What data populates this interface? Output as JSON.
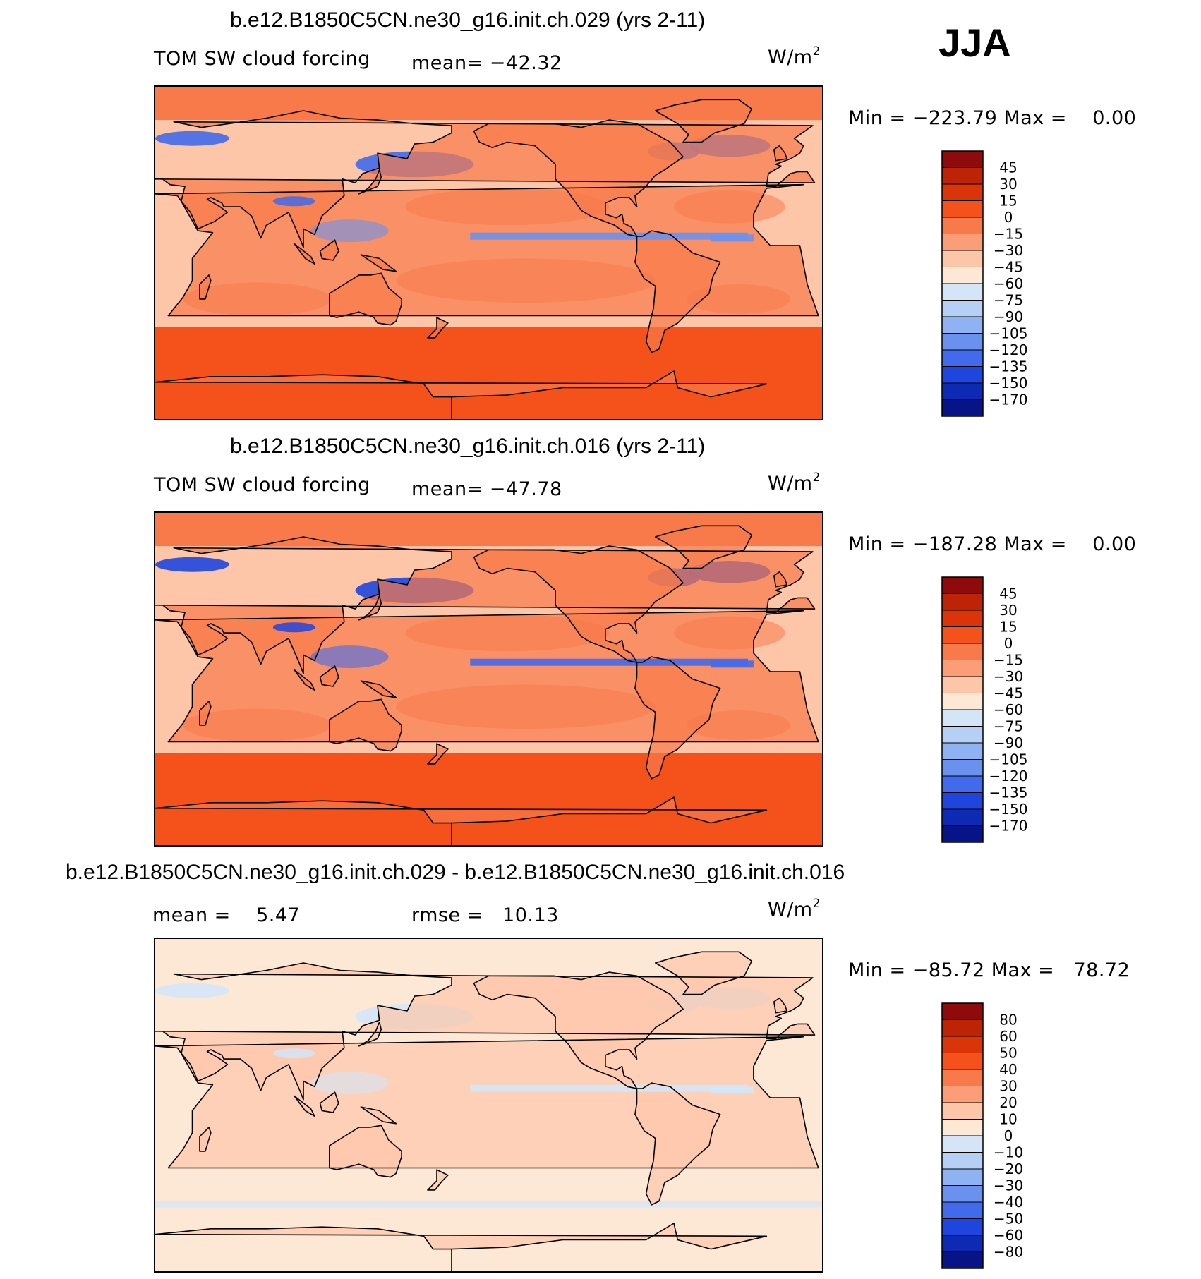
{
  "season": "JJA",
  "panels": [
    {
      "title": "b.e12.B1850C5CN.ne30_g16.init.ch.029 (yrs 2-11)",
      "left_label": "TOM SW cloud forcing",
      "center_label": "mean= −42.32",
      "units": "W/m",
      "units_sup": "2",
      "minmax": "Min = −223.79 Max =    0.00",
      "colorbar": {
        "labels": [
          "45",
          "30",
          "15",
          "0",
          "−15",
          "−30",
          "−45",
          "−60",
          "−75",
          "−90",
          "−105",
          "−120",
          "−135",
          "−150",
          "−170"
        ],
        "colors": [
          "#8f0a0a",
          "#bd2406",
          "#db3408",
          "#f4511b",
          "#f87a4a",
          "#fb9e78",
          "#fdc6a9",
          "#fde8d6",
          "#d4e5f8",
          "#b5cff5",
          "#8fb2f2",
          "#6b91ef",
          "#416aec",
          "#1f45df",
          "#0c2ab4",
          "#061487"
        ]
      },
      "map": {
        "bg": "#fdc6a9",
        "north": "#f87a4a",
        "south": "#f4511b",
        "tropic": "#6b91ef",
        "storm": "#416aec",
        "land": "#f87a4a"
      }
    },
    {
      "title": "b.e12.B1850C5CN.ne30_g16.init.ch.016 (yrs 2-11)",
      "left_label": "TOM SW cloud forcing",
      "center_label": "mean= −47.78",
      "units": "W/m",
      "units_sup": "2",
      "minmax": "Min = −187.28 Max =    0.00",
      "colorbar": {
        "labels": [
          "45",
          "30",
          "15",
          "0",
          "−15",
          "−30",
          "−45",
          "−60",
          "−75",
          "−90",
          "−105",
          "−120",
          "−135",
          "−150",
          "−170"
        ],
        "colors": [
          "#8f0a0a",
          "#bd2406",
          "#db3408",
          "#f4511b",
          "#f87a4a",
          "#fb9e78",
          "#fdc6a9",
          "#fde8d6",
          "#d4e5f8",
          "#b5cff5",
          "#8fb2f2",
          "#6b91ef",
          "#416aec",
          "#1f45df",
          "#0c2ab4",
          "#061487"
        ]
      },
      "map": {
        "bg": "#fdc6a9",
        "north": "#f87a4a",
        "south": "#f4511b",
        "tropic": "#416aec",
        "storm": "#1f45df",
        "land": "#f87a4a"
      }
    },
    {
      "title": "b.e12.B1850C5CN.ne30_g16.init.ch.029 - b.e12.B1850C5CN.ne30_g16.init.ch.016",
      "left_label": "mean =    5.47",
      "center_label": "rmse =   10.13",
      "units": "W/m",
      "units_sup": "2",
      "minmax": "Min = −85.72 Max =   78.72",
      "colorbar": {
        "labels": [
          "80",
          "60",
          "50",
          "40",
          "30",
          "20",
          "10",
          "0",
          "−10",
          "−20",
          "−30",
          "−40",
          "−50",
          "−60",
          "−80"
        ],
        "colors": [
          "#8f0a0a",
          "#bd2406",
          "#db3408",
          "#f4511b",
          "#f87a4a",
          "#fb9e78",
          "#fdc6a9",
          "#fde8d6",
          "#d4e5f8",
          "#b5cff5",
          "#8fb2f2",
          "#6b91ef",
          "#416aec",
          "#1f45df",
          "#0c2ab4",
          "#061487"
        ]
      },
      "map": {
        "bg": "#fde8d6",
        "north": "#fde8d6",
        "south": "#fde8d6",
        "tropic": "#d4e5f8",
        "storm": "#d4e5f8",
        "land": "#fdc6a9"
      }
    }
  ]
}
